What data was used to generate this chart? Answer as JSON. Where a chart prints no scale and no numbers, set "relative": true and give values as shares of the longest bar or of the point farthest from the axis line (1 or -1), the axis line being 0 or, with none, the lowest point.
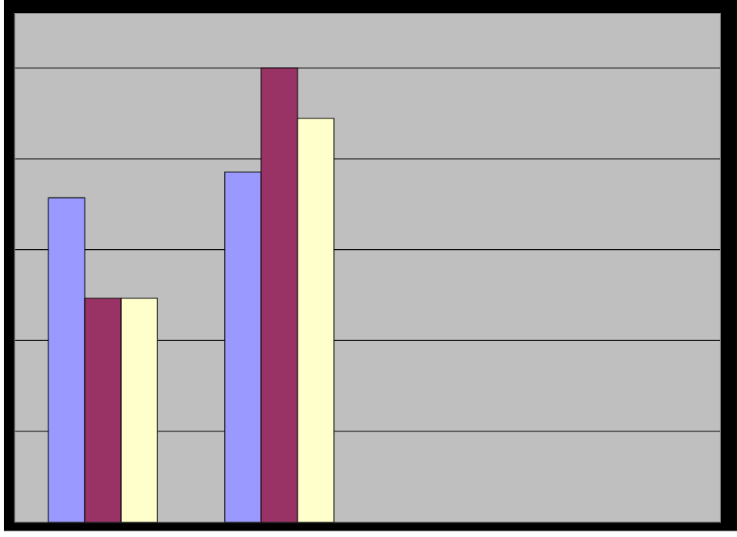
{
  "chart_data": {
    "type": "bar",
    "relative": true,
    "grid": "y",
    "categories": [
      null,
      null
    ],
    "series": [
      {
        "color": "#9999ff",
        "values": [
          0.714,
          0.771
        ]
      },
      {
        "color": "#993366",
        "values": [
          0.493,
          1
        ]
      },
      {
        "color": "#ffffcc",
        "values": [
          0.493,
          0.889
        ]
      }
    ]
  }
}
